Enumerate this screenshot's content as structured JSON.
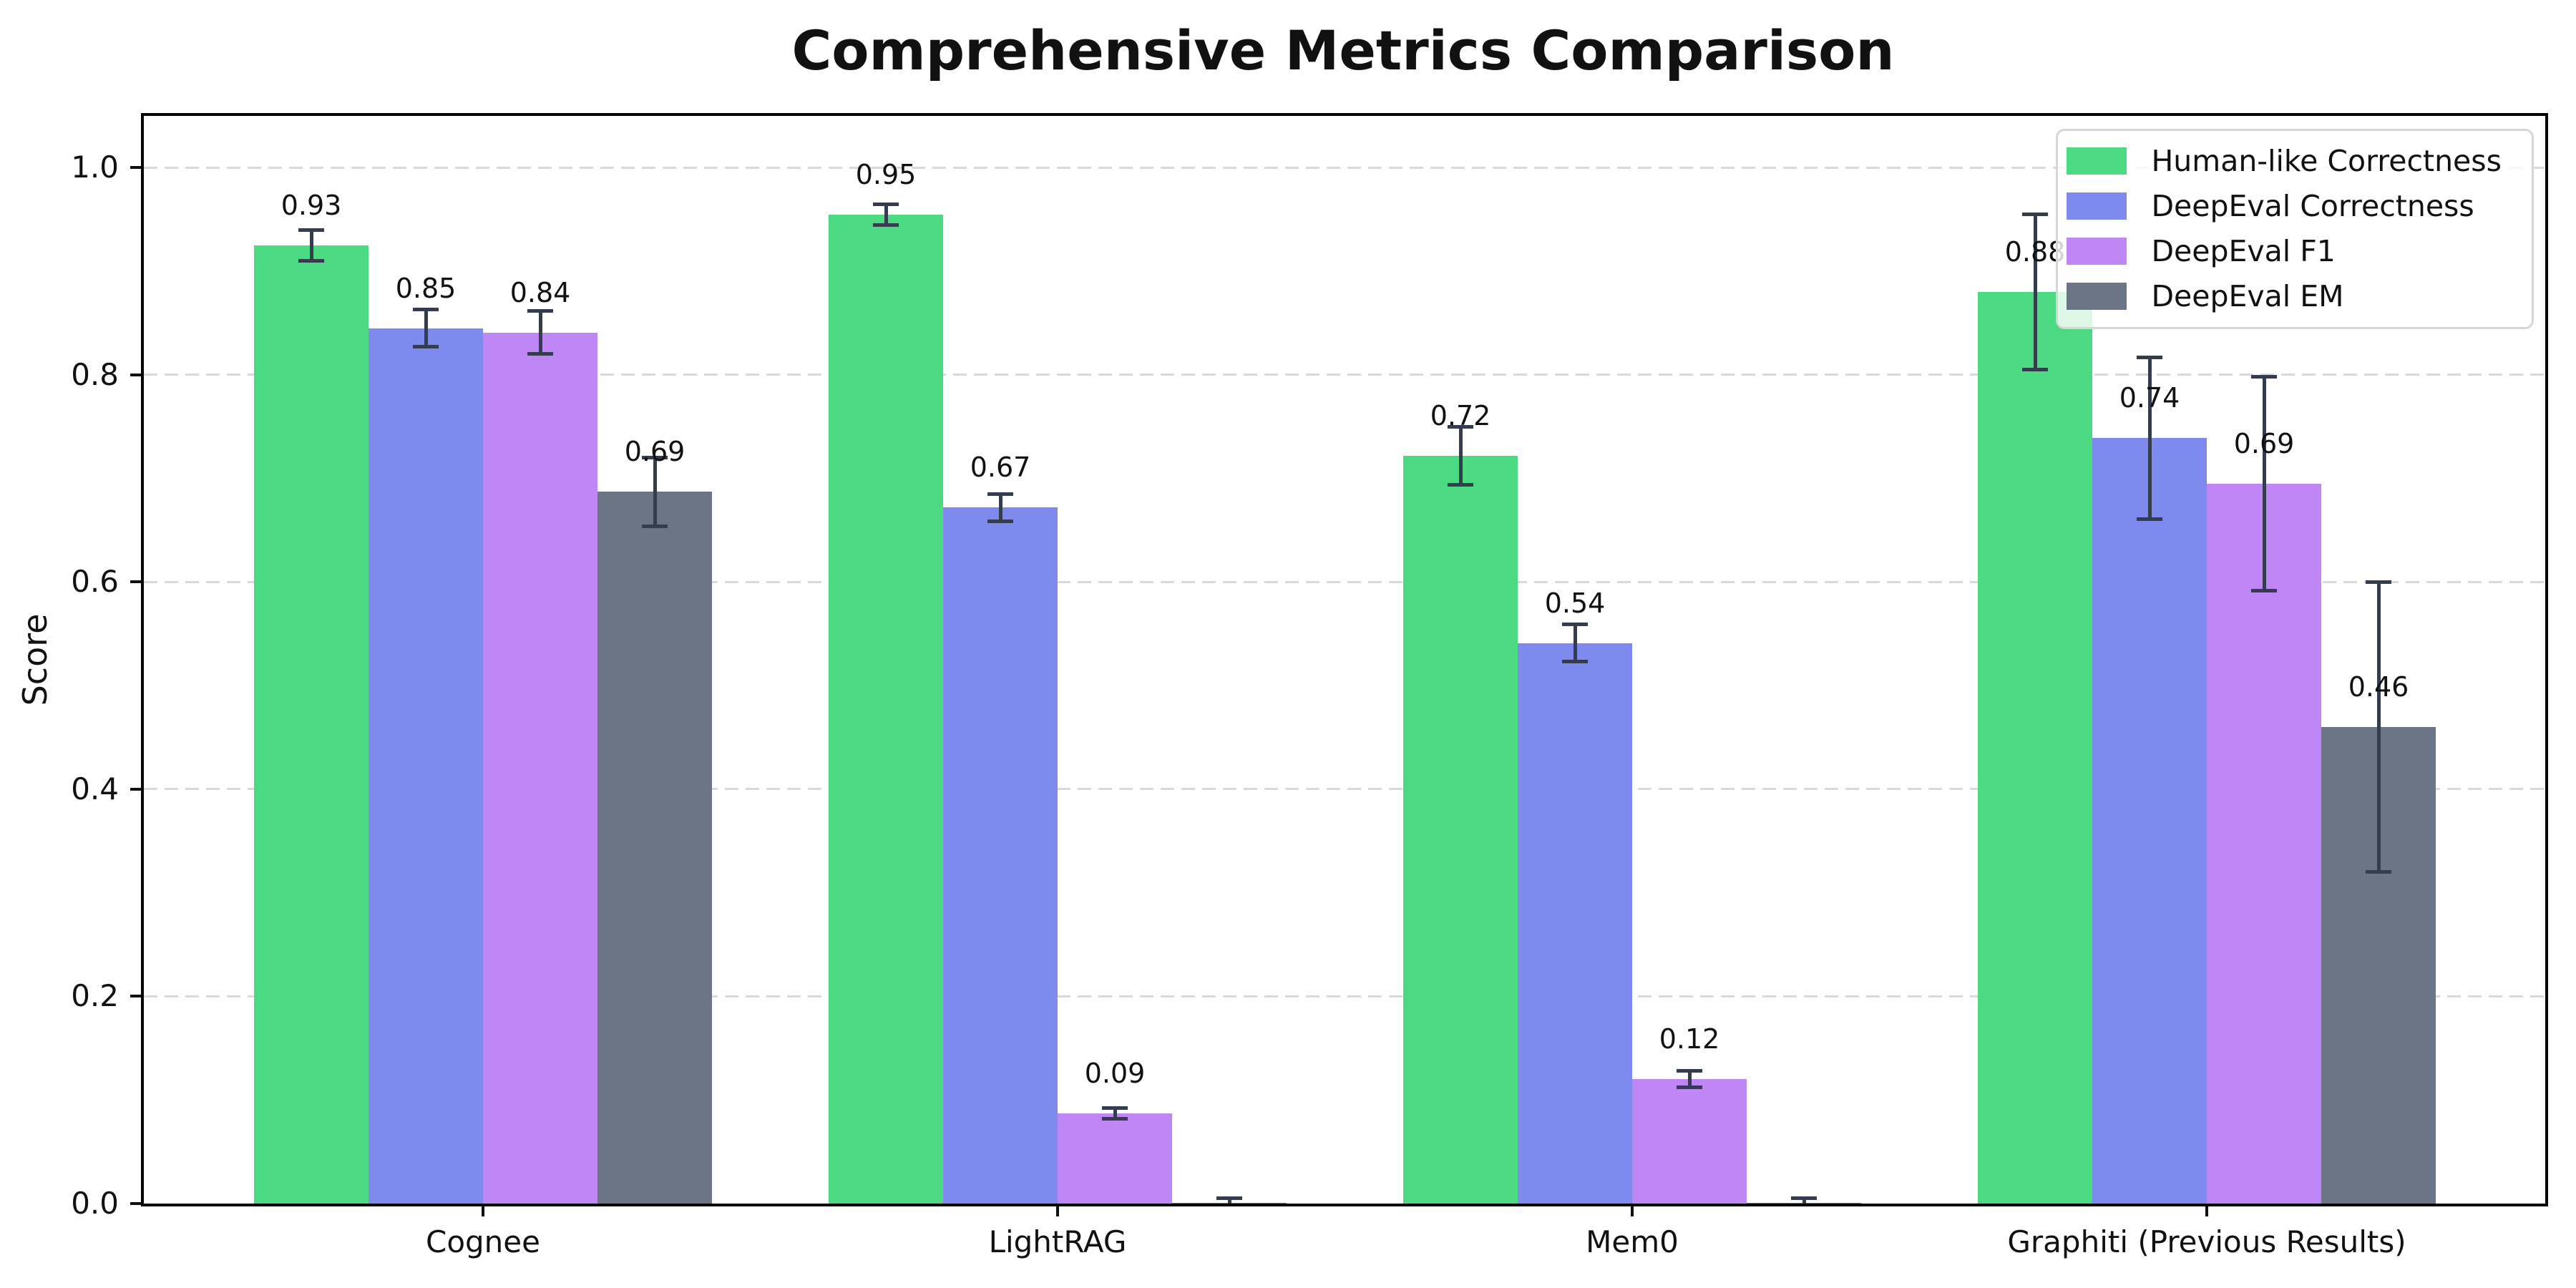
{
  "chart_data": {
    "type": "bar",
    "title": "Comprehensive Metrics Comparison",
    "ylabel": "Score",
    "xlabel": "",
    "categories": [
      "Cognee",
      "LightRAG",
      "Mem0",
      "Graphiti (Previous Results)"
    ],
    "ylim": [
      0,
      1.05
    ],
    "yticks": [
      "0.0",
      "0.2",
      "0.4",
      "0.6",
      "0.8",
      "1.0"
    ],
    "grid": {
      "axis": "y",
      "style": "dashed",
      "color": "#d9d9d9"
    },
    "legend_position": "upper right",
    "series": [
      {
        "name": "Human-like Correctness",
        "color": "#4bd981",
        "values": [
          0.925,
          0.955,
          0.722,
          0.88
        ],
        "errors": [
          0.015,
          0.01,
          0.028,
          0.075
        ],
        "labels": [
          "0.93",
          "0.95",
          "0.72",
          "0.88"
        ]
      },
      {
        "name": "DeepEval Correctness",
        "color": "#7f8aef",
        "values": [
          0.845,
          0.672,
          0.541,
          0.739
        ],
        "errors": [
          0.018,
          0.013,
          0.018,
          0.078
        ],
        "labels": [
          "0.85",
          "0.67",
          "0.54",
          "0.74"
        ]
      },
      {
        "name": "DeepEval F1",
        "color": "#bf87f6",
        "values": [
          0.841,
          0.087,
          0.12,
          0.695
        ],
        "errors": [
          0.021,
          0.005,
          0.008,
          0.103
        ],
        "labels": [
          "0.84",
          "0.09",
          "0.12",
          "0.69"
        ]
      },
      {
        "name": "DeepEval EM",
        "color": "#6c7586",
        "values": [
          0.687,
          0.001,
          0.001,
          0.46
        ],
        "errors": [
          0.033,
          0.004,
          0.004,
          0.14
        ],
        "labels": [
          "0.69",
          null,
          null,
          "0.46"
        ]
      }
    ],
    "style": {
      "error_bar_color": "#333d4e",
      "spine_color": "#000000",
      "text_color": "#111111"
    }
  }
}
